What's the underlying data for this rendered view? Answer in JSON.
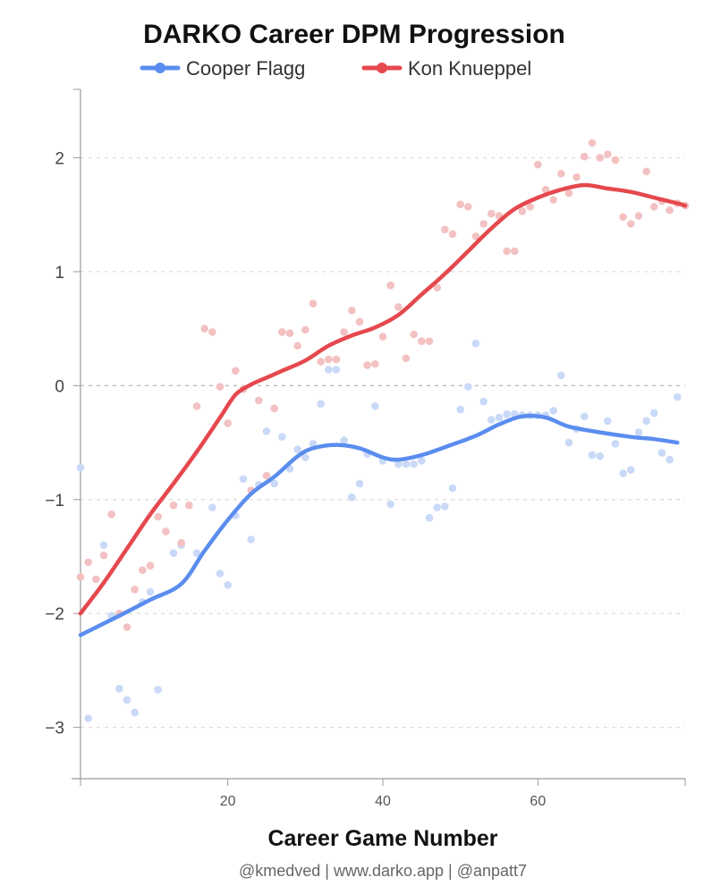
{
  "chart_data": {
    "type": "scatter",
    "title": "DARKO Career DPM Progression",
    "xlabel": "Career Game Number",
    "ylabel": "",
    "credit": "@kmedved | www.darko.app | @anpatt7",
    "xlim": [
      1,
      79
    ],
    "ylim": [
      -3.45,
      2.6
    ],
    "x_ticks": [
      20,
      40,
      60
    ],
    "y_ticks": [
      2,
      1,
      0,
      -1,
      -2,
      -3
    ],
    "y_tick_labels": [
      "2",
      "1",
      "0",
      "−1",
      "−2",
      "−3"
    ],
    "legend_position": "top-center",
    "series": [
      {
        "name": "Cooper Flagg",
        "color": "#5b8def",
        "points_color": "#c9d9f7",
        "points": [
          [
            1,
            -0.72
          ],
          [
            2,
            -2.92
          ],
          [
            4,
            -1.4
          ],
          [
            5,
            -2.02
          ],
          [
            6,
            -2.66
          ],
          [
            7,
            -2.76
          ],
          [
            8,
            -2.87
          ],
          [
            9,
            -1.9
          ],
          [
            10,
            -1.81
          ],
          [
            11,
            -2.67
          ],
          [
            13,
            -1.47
          ],
          [
            14,
            -1.4
          ],
          [
            16,
            -1.47
          ],
          [
            18,
            -1.07
          ],
          [
            19,
            -1.65
          ],
          [
            20,
            -1.75
          ],
          [
            21,
            -1.14
          ],
          [
            22,
            -0.82
          ],
          [
            23,
            -1.35
          ],
          [
            24,
            -0.87
          ],
          [
            25,
            -0.4
          ],
          [
            26,
            -0.86
          ],
          [
            27,
            -0.45
          ],
          [
            28,
            -0.73
          ],
          [
            29,
            -0.56
          ],
          [
            30,
            -0.63
          ],
          [
            31,
            -0.51
          ],
          [
            32,
            -0.16
          ],
          [
            33,
            0.14
          ],
          [
            34,
            0.14
          ],
          [
            35,
            -0.48
          ],
          [
            36,
            -0.98
          ],
          [
            37,
            -0.86
          ],
          [
            38,
            -0.6
          ],
          [
            39,
            -0.18
          ],
          [
            40,
            -0.66
          ],
          [
            41,
            -1.04
          ],
          [
            42,
            -0.69
          ],
          [
            43,
            -0.69
          ],
          [
            44,
            -0.69
          ],
          [
            45,
            -0.66
          ],
          [
            46,
            -1.16
          ],
          [
            47,
            -1.07
          ],
          [
            48,
            -1.06
          ],
          [
            49,
            -0.9
          ],
          [
            50,
            -0.21
          ],
          [
            51,
            -0.01
          ],
          [
            52,
            0.37
          ],
          [
            53,
            -0.14
          ],
          [
            54,
            -0.3
          ],
          [
            55,
            -0.28
          ],
          [
            56,
            -0.25
          ],
          [
            57,
            -0.25
          ],
          [
            58,
            -0.26
          ],
          [
            59,
            -0.26
          ],
          [
            60,
            -0.26
          ],
          [
            61,
            -0.26
          ],
          [
            62,
            -0.22
          ],
          [
            63,
            0.09
          ],
          [
            64,
            -0.5
          ],
          [
            65,
            -0.38
          ],
          [
            66,
            -0.27
          ],
          [
            67,
            -0.61
          ],
          [
            68,
            -0.62
          ],
          [
            69,
            -0.31
          ],
          [
            70,
            -0.51
          ],
          [
            71,
            -0.77
          ],
          [
            72,
            -0.74
          ],
          [
            73,
            -0.41
          ],
          [
            74,
            -0.31
          ],
          [
            75,
            -0.24
          ],
          [
            76,
            -0.59
          ],
          [
            77,
            -0.65
          ],
          [
            78,
            -0.1
          ]
        ],
        "trend": [
          [
            1,
            -2.19
          ],
          [
            6,
            -2.02
          ],
          [
            10,
            -1.88
          ],
          [
            14,
            -1.74
          ],
          [
            17,
            -1.45
          ],
          [
            20,
            -1.18
          ],
          [
            23,
            -0.95
          ],
          [
            26,
            -0.8
          ],
          [
            29,
            -0.62
          ],
          [
            31,
            -0.55
          ],
          [
            34,
            -0.52
          ],
          [
            37,
            -0.55
          ],
          [
            40,
            -0.63
          ],
          [
            42,
            -0.65
          ],
          [
            45,
            -0.61
          ],
          [
            48,
            -0.54
          ],
          [
            52,
            -0.44
          ],
          [
            55,
            -0.34
          ],
          [
            58,
            -0.27
          ],
          [
            61,
            -0.28
          ],
          [
            64,
            -0.36
          ],
          [
            68,
            -0.41
          ],
          [
            72,
            -0.45
          ],
          [
            75,
            -0.47
          ],
          [
            78,
            -0.5
          ]
        ]
      },
      {
        "name": "Kon Knueppel",
        "color": "#e5484d",
        "points_color": "#f3c1c2",
        "points": [
          [
            1,
            -1.68
          ],
          [
            2,
            -1.55
          ],
          [
            3,
            -1.7
          ],
          [
            4,
            -1.49
          ],
          [
            5,
            -1.13
          ],
          [
            6,
            -2.0
          ],
          [
            7,
            -2.12
          ],
          [
            8,
            -1.79
          ],
          [
            9,
            -1.62
          ],
          [
            10,
            -1.58
          ],
          [
            11,
            -1.15
          ],
          [
            12,
            -1.28
          ],
          [
            13,
            -1.05
          ],
          [
            14,
            -1.38
          ],
          [
            15,
            -1.05
          ],
          [
            16,
            -0.18
          ],
          [
            17,
            0.5
          ],
          [
            18,
            0.47
          ],
          [
            19,
            -0.01
          ],
          [
            20,
            -0.33
          ],
          [
            21,
            0.13
          ],
          [
            22,
            -0.03
          ],
          [
            23,
            -0.92
          ],
          [
            24,
            -0.13
          ],
          [
            25,
            -0.79
          ],
          [
            26,
            -0.2
          ],
          [
            27,
            0.47
          ],
          [
            28,
            0.46
          ],
          [
            29,
            0.35
          ],
          [
            30,
            0.49
          ],
          [
            31,
            0.72
          ],
          [
            32,
            0.21
          ],
          [
            33,
            0.23
          ],
          [
            34,
            0.23
          ],
          [
            35,
            0.47
          ],
          [
            36,
            0.66
          ],
          [
            37,
            0.56
          ],
          [
            38,
            0.18
          ],
          [
            39,
            0.19
          ],
          [
            40,
            0.43
          ],
          [
            41,
            0.88
          ],
          [
            42,
            0.69
          ],
          [
            43,
            0.24
          ],
          [
            44,
            0.45
          ],
          [
            45,
            0.39
          ],
          [
            46,
            0.39
          ],
          [
            47,
            0.86
          ],
          [
            48,
            1.37
          ],
          [
            49,
            1.33
          ],
          [
            50,
            1.59
          ],
          [
            51,
            1.57
          ],
          [
            52,
            1.31
          ],
          [
            53,
            1.42
          ],
          [
            54,
            1.51
          ],
          [
            55,
            1.49
          ],
          [
            56,
            1.18
          ],
          [
            57,
            1.18
          ],
          [
            58,
            1.53
          ],
          [
            59,
            1.57
          ],
          [
            60,
            1.94
          ],
          [
            61,
            1.72
          ],
          [
            62,
            1.63
          ],
          [
            63,
            1.86
          ],
          [
            64,
            1.69
          ],
          [
            65,
            1.83
          ],
          [
            66,
            2.01
          ],
          [
            67,
            2.13
          ],
          [
            68,
            2.0
          ],
          [
            69,
            2.03
          ],
          [
            70,
            1.98
          ],
          [
            71,
            1.48
          ],
          [
            72,
            1.42
          ],
          [
            73,
            1.49
          ],
          [
            74,
            1.88
          ],
          [
            75,
            1.57
          ],
          [
            76,
            1.62
          ],
          [
            77,
            1.54
          ],
          [
            78,
            1.6
          ],
          [
            79,
            1.58
          ]
        ],
        "trend": [
          [
            1,
            -2.0
          ],
          [
            4,
            -1.73
          ],
          [
            7,
            -1.43
          ],
          [
            10,
            -1.13
          ],
          [
            13,
            -0.86
          ],
          [
            16,
            -0.58
          ],
          [
            19,
            -0.28
          ],
          [
            21,
            -0.08
          ],
          [
            23,
            0.01
          ],
          [
            25,
            0.07
          ],
          [
            27,
            0.13
          ],
          [
            30,
            0.22
          ],
          [
            33,
            0.35
          ],
          [
            36,
            0.44
          ],
          [
            39,
            0.51
          ],
          [
            42,
            0.62
          ],
          [
            45,
            0.8
          ],
          [
            48,
            0.98
          ],
          [
            51,
            1.18
          ],
          [
            54,
            1.38
          ],
          [
            57,
            1.55
          ],
          [
            60,
            1.65
          ],
          [
            63,
            1.72
          ],
          [
            66,
            1.76
          ],
          [
            69,
            1.73
          ],
          [
            72,
            1.7
          ],
          [
            75,
            1.65
          ],
          [
            78,
            1.6
          ],
          [
            79,
            1.58
          ]
        ]
      }
    ]
  }
}
